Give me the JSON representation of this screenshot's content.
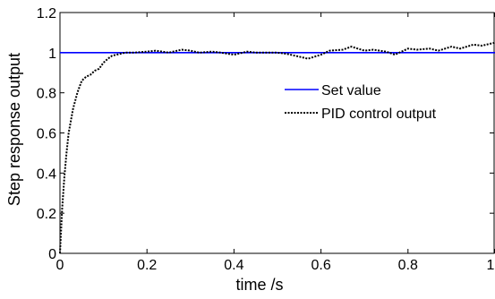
{
  "chart_data": {
    "type": "line",
    "title": "",
    "xlabel": "time /s",
    "ylabel": "Step response output",
    "xlim": [
      0,
      1
    ],
    "ylim": [
      0,
      1.2
    ],
    "xticks": [
      "0",
      "0.2",
      "0.4",
      "0.6",
      "0.8",
      "1"
    ],
    "yticks": [
      "0",
      "0.2",
      "0.4",
      "0.6",
      "0.8",
      "1",
      "1.2"
    ],
    "grid": false,
    "legend_position": "center-right",
    "series": [
      {
        "name": "Set value",
        "color": "#0000ff",
        "style": "solid",
        "x": [
          0,
          1
        ],
        "y": [
          1,
          1
        ]
      },
      {
        "name": "PID control output",
        "color": "#000000",
        "style": "dotted",
        "x": [
          0,
          0.005,
          0.01,
          0.015,
          0.02,
          0.03,
          0.04,
          0.05,
          0.06,
          0.07,
          0.08,
          0.09,
          0.1,
          0.11,
          0.12,
          0.13,
          0.15,
          0.17,
          0.2,
          0.22,
          0.25,
          0.28,
          0.3,
          0.32,
          0.35,
          0.37,
          0.4,
          0.43,
          0.45,
          0.48,
          0.5,
          0.52,
          0.55,
          0.57,
          0.6,
          0.62,
          0.65,
          0.67,
          0.7,
          0.72,
          0.75,
          0.77,
          0.8,
          0.82,
          0.85,
          0.87,
          0.9,
          0.92,
          0.95,
          0.97,
          1.0
        ],
        "y": [
          0,
          0.22,
          0.38,
          0.5,
          0.6,
          0.72,
          0.8,
          0.86,
          0.88,
          0.89,
          0.91,
          0.92,
          0.95,
          0.97,
          0.985,
          0.99,
          1.0,
          1.0,
          1.005,
          1.01,
          1.0,
          1.015,
          1.01,
          1.0,
          1.005,
          1.0,
          0.99,
          1.005,
          1.0,
          1.0,
          1.0,
          0.995,
          0.98,
          0.97,
          0.99,
          1.01,
          1.015,
          1.03,
          1.01,
          1.015,
          1.005,
          0.99,
          1.02,
          1.015,
          1.02,
          1.01,
          1.03,
          1.02,
          1.04,
          1.035,
          1.05
        ]
      }
    ]
  }
}
